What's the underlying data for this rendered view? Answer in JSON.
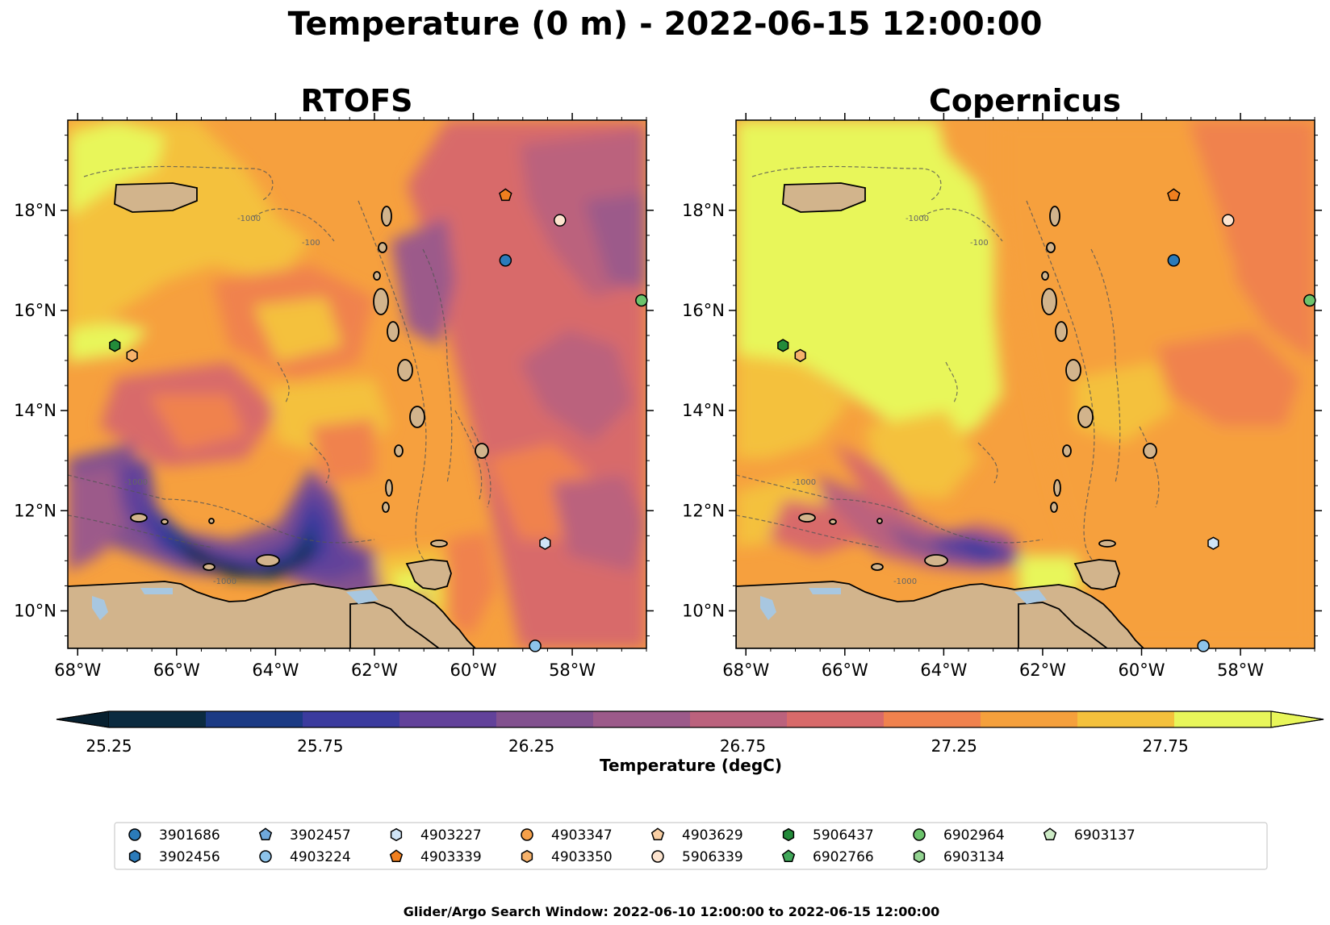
{
  "figure": {
    "title": "Temperature (0 m) - 2022-06-15 12:00:00",
    "footer": "Glider/Argo Search Window: 2022-06-10 12:00:00 to 2022-06-15 12:00:00"
  },
  "panels": [
    {
      "id": "rtofs",
      "title": "RTOFS"
    },
    {
      "id": "copernicus",
      "title": "Copernicus"
    }
  ],
  "axes": {
    "lon_range": [
      -68.2,
      -56.5
    ],
    "lat_range": [
      9.25,
      19.8
    ],
    "x_ticks": [
      {
        "value": -68,
        "label": "68°W"
      },
      {
        "value": -66,
        "label": "66°W"
      },
      {
        "value": -64,
        "label": "64°W"
      },
      {
        "value": -62,
        "label": "62°W"
      },
      {
        "value": -60,
        "label": "60°W"
      },
      {
        "value": -58,
        "label": "58°W"
      }
    ],
    "y_ticks": [
      {
        "value": 10,
        "label": "10°N"
      },
      {
        "value": 12,
        "label": "12°N"
      },
      {
        "value": 14,
        "label": "14°N"
      },
      {
        "value": 16,
        "label": "16°N"
      },
      {
        "value": 18,
        "label": "18°N"
      }
    ],
    "contour_labels": [
      "-1000",
      "-100"
    ]
  },
  "colorbar": {
    "label": "Temperature (degC)",
    "min": 25.25,
    "max": 28.0,
    "extend": "both",
    "tick_values": [
      25.25,
      25.75,
      26.25,
      26.75,
      27.25,
      27.75
    ],
    "tick_labels": [
      "25.25",
      "25.75",
      "26.25",
      "26.75",
      "27.25",
      "27.75"
    ],
    "colors": [
      "#0b2b40",
      "#1b3a84",
      "#3b3b9e",
      "#62429a",
      "#82518f",
      "#9c5a8a",
      "#bb627d",
      "#d86a6a",
      "#f0824e",
      "#f5a03c",
      "#f4c13c",
      "#e8f65a"
    ]
  },
  "colors": {
    "land": "#d2b48c",
    "lake": "#a8c7e0"
  },
  "legend": {
    "items": [
      {
        "id": "3901686",
        "marker": "circle",
        "color": "#2b7bba"
      },
      {
        "id": "3902456",
        "marker": "hexagon",
        "color": "#2b7bba"
      },
      {
        "id": "3902457",
        "marker": "pentagon",
        "color": "#6fa8dc"
      },
      {
        "id": "4903224",
        "marker": "circle",
        "color": "#8dc3ea"
      },
      {
        "id": "4903227",
        "marker": "hexagon",
        "color": "#cfe4f6"
      },
      {
        "id": "4903339",
        "marker": "pentagon",
        "color": "#f07f1f"
      },
      {
        "id": "4903347",
        "marker": "circle",
        "color": "#f5a04a"
      },
      {
        "id": "4903350",
        "marker": "hexagon",
        "color": "#f6b26b"
      },
      {
        "id": "4903629",
        "marker": "pentagon",
        "color": "#f9cfa4"
      },
      {
        "id": "5906339",
        "marker": "circle",
        "color": "#fde4cf"
      },
      {
        "id": "5906437",
        "marker": "hexagon",
        "color": "#238b3a"
      },
      {
        "id": "6902766",
        "marker": "pentagon",
        "color": "#41a85a"
      },
      {
        "id": "6902964",
        "marker": "circle",
        "color": "#6cc36c"
      },
      {
        "id": "6903134",
        "marker": "hexagon",
        "color": "#93d391"
      },
      {
        "id": "6903137",
        "marker": "pentagon",
        "color": "#cdebc6"
      }
    ]
  },
  "floats": [
    {
      "lon": -59.35,
      "lat": 18.3,
      "marker": "pentagon",
      "color": "#f07f1f"
    },
    {
      "lon": -58.25,
      "lat": 17.8,
      "marker": "circle",
      "color": "#fde4cf"
    },
    {
      "lon": -59.35,
      "lat": 17.0,
      "marker": "circle",
      "color": "#2b7bba"
    },
    {
      "lon": -56.6,
      "lat": 16.2,
      "marker": "circle",
      "color": "#6cc36c"
    },
    {
      "lon": -67.25,
      "lat": 15.3,
      "marker": "hexagon",
      "color": "#238b3a"
    },
    {
      "lon": -66.9,
      "lat": 15.1,
      "marker": "hexagon",
      "color": "#f6b26b"
    },
    {
      "lon": -58.55,
      "lat": 11.35,
      "marker": "hexagon",
      "color": "#cfe4f6"
    },
    {
      "lon": -58.75,
      "lat": 9.3,
      "marker": "circle",
      "color": "#8dc3ea"
    }
  ]
}
